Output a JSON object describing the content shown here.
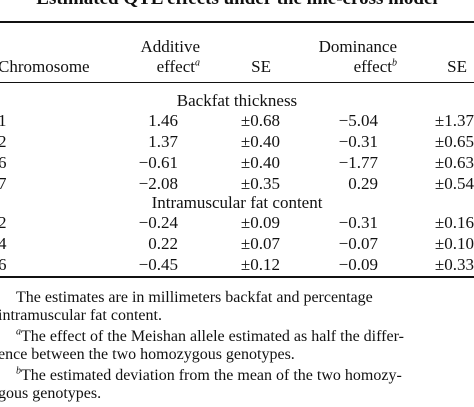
{
  "title": "Estimated QTL effects under the line-cross model",
  "headers": {
    "chromosome": "Chromosome",
    "additive_line1": "Additive",
    "additive_line2": "effect",
    "additive_sup": "a",
    "se1": "SE",
    "dominance_line1": "Dominance",
    "dominance_line2": "effect",
    "dominance_sup": "b",
    "se2": "SE"
  },
  "sections": [
    {
      "title": "Backfat thickness",
      "rows": [
        {
          "chromosome": "1",
          "additive": "1.46",
          "se_add": "±0.68",
          "dominance": "−5.04",
          "se_dom": "±1.37"
        },
        {
          "chromosome": "2",
          "additive": "1.37",
          "se_add": "±0.40",
          "dominance": "−0.31",
          "se_dom": "±0.65"
        },
        {
          "chromosome": "6",
          "additive": "−0.61",
          "se_add": "±0.40",
          "dominance": "−1.77",
          "se_dom": "±0.63"
        },
        {
          "chromosome": "7",
          "additive": "−2.08",
          "se_add": "±0.35",
          "dominance": "0.29",
          "se_dom": "±0.54"
        }
      ]
    },
    {
      "title": "Intramuscular fat content",
      "rows": [
        {
          "chromosome": "2",
          "additive": "−0.24",
          "se_add": "±0.09",
          "dominance": "−0.31",
          "se_dom": "±0.16"
        },
        {
          "chromosome": "4",
          "additive": "0.22",
          "se_add": "±0.07",
          "dominance": "−0.07",
          "se_dom": "±0.10"
        },
        {
          "chromosome": "6",
          "additive": "−0.45",
          "se_add": "±0.12",
          "dominance": "−0.09",
          "se_dom": "±0.33"
        }
      ]
    }
  ],
  "notes": {
    "main_line1": "The estimates are in millimeters backfat and percentage",
    "main_line2": "intramuscular fat content.",
    "a_sup": "a",
    "a_line1": "The effect of the Meishan allele estimated as half the differ-",
    "a_line2": "ence between the two homozygous genotypes.",
    "b_sup": "b",
    "b_line1": "The estimated deviation from the mean of the two homozy-",
    "b_line2": "gous genotypes."
  }
}
